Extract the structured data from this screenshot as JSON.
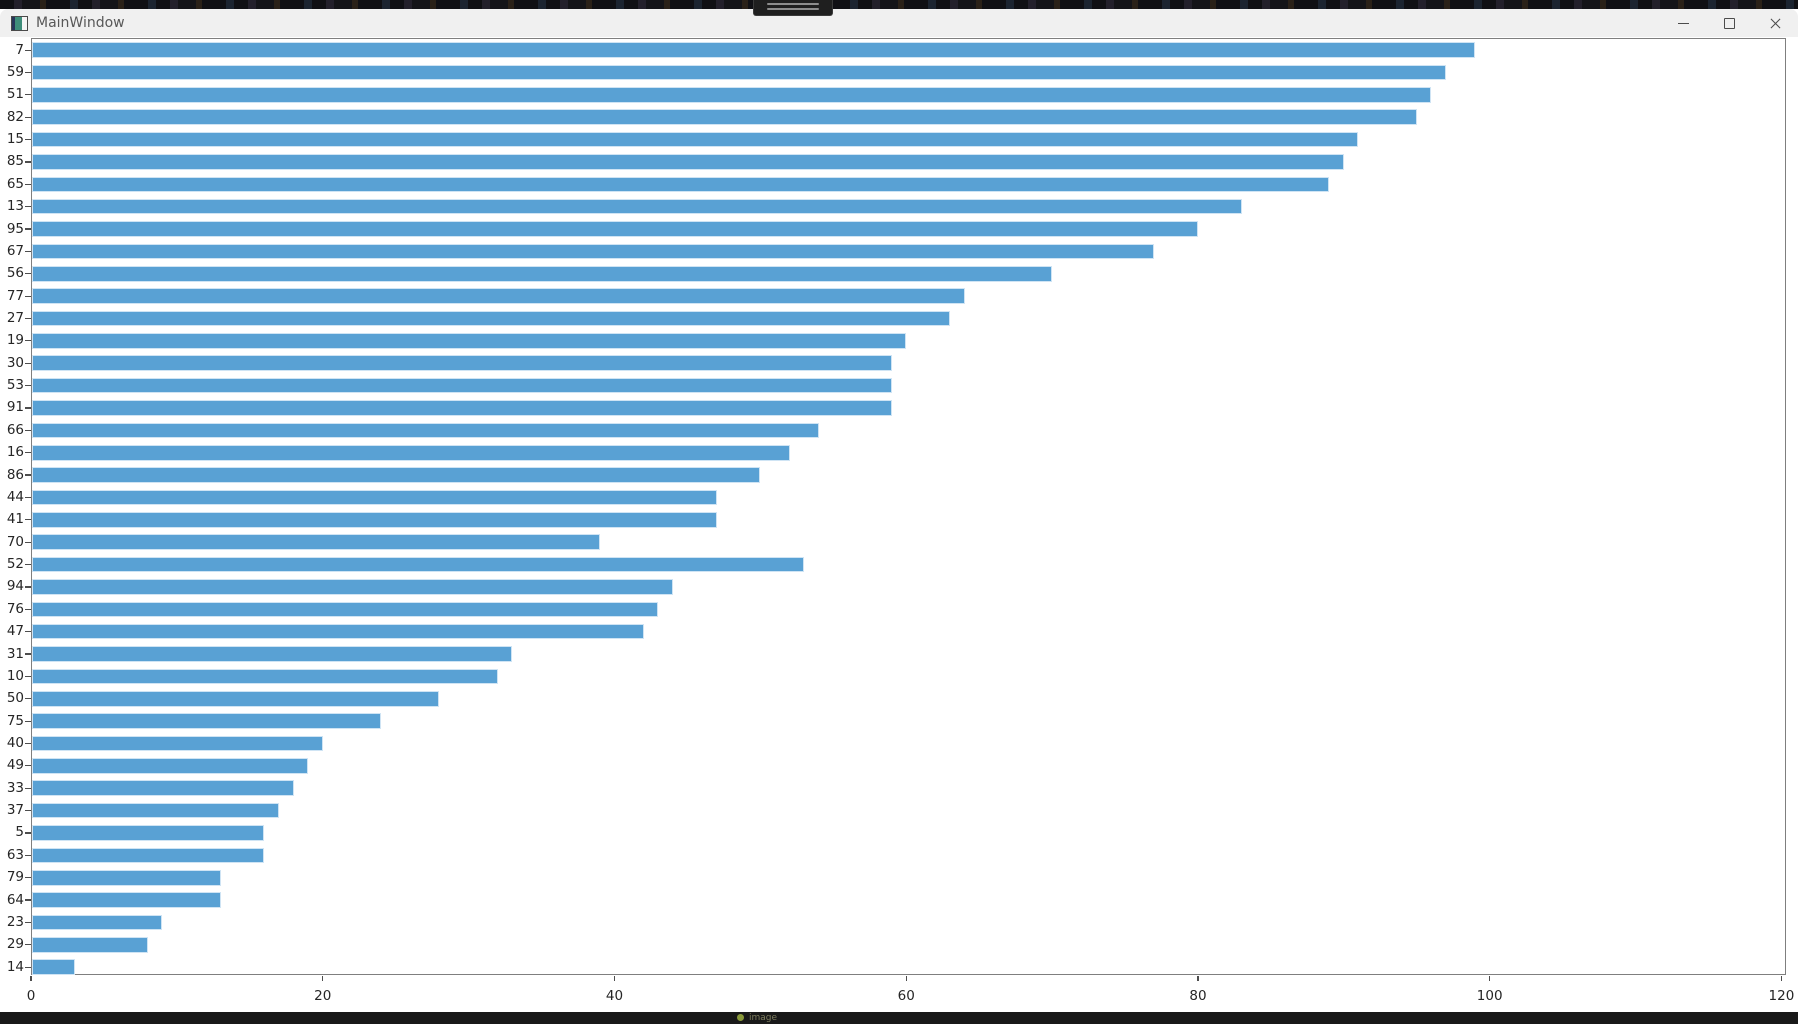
{
  "window": {
    "title": "MainWindow",
    "controls": [
      "minimize",
      "maximize",
      "close"
    ]
  },
  "bottom_bar": {
    "indicator_text": "image"
  },
  "chart_data": {
    "type": "bar",
    "orientation": "horizontal",
    "title": "",
    "xlabel": "",
    "ylabel": "",
    "grid": false,
    "legend": null,
    "xlim": [
      0,
      120.3
    ],
    "x_ticks": [
      0,
      20,
      40,
      60,
      80,
      100,
      120
    ],
    "bar_color": "#59a1d4",
    "categories": [
      "7",
      "59",
      "51",
      "82",
      "15",
      "85",
      "65",
      "13",
      "95",
      "67",
      "56",
      "77",
      "27",
      "19",
      "30",
      "53",
      "91",
      "66",
      "16",
      "86",
      "44",
      "41",
      "70",
      "52",
      "94",
      "76",
      "47",
      "31",
      "10",
      "50",
      "75",
      "40",
      "49",
      "33",
      "37",
      "5",
      "63",
      "79",
      "64",
      "23",
      "29",
      "14"
    ],
    "values": [
      99,
      97,
      96,
      95,
      91,
      90,
      89,
      83,
      80,
      77,
      70,
      64,
      63,
      60,
      59,
      59,
      59,
      54,
      52,
      50,
      47,
      47,
      39,
      53,
      44,
      43,
      42,
      33,
      32,
      28,
      24,
      20,
      19,
      18,
      17,
      16,
      16,
      13,
      13,
      9,
      8,
      3
    ]
  }
}
